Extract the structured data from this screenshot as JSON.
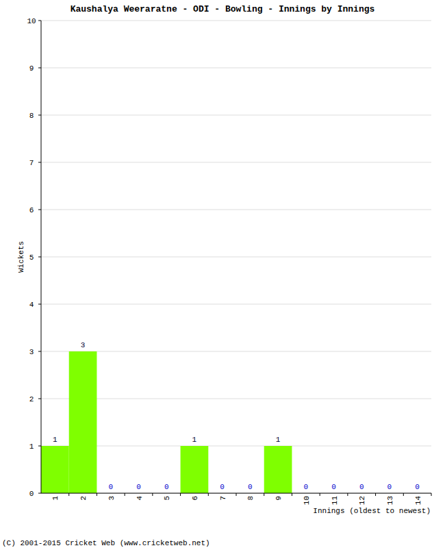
{
  "chart_data": {
    "type": "bar",
    "title": "Kaushalya Weeraratne - ODI - Bowling - Innings by Innings",
    "y_label": "Wickets",
    "x_label": "Innings (oldest to newest)",
    "annotations": [
      "(C) 2001-2015 Cricket Web (www.cricketweb.net)"
    ],
    "categories": [
      "1",
      "2",
      "3",
      "4",
      "5",
      "6",
      "7",
      "8",
      "9",
      "10",
      "11",
      "12",
      "13",
      "14"
    ],
    "values": [
      1,
      3,
      0,
      0,
      0,
      1,
      0,
      0,
      1,
      0,
      0,
      0,
      0,
      0
    ],
    "color": "#7fff00",
    "ylim": [
      0,
      10
    ],
    "yticks": [
      0,
      1,
      2,
      3,
      4,
      5,
      6,
      7,
      8,
      9,
      10
    ],
    "grid": true,
    "data_labels": true
  }
}
